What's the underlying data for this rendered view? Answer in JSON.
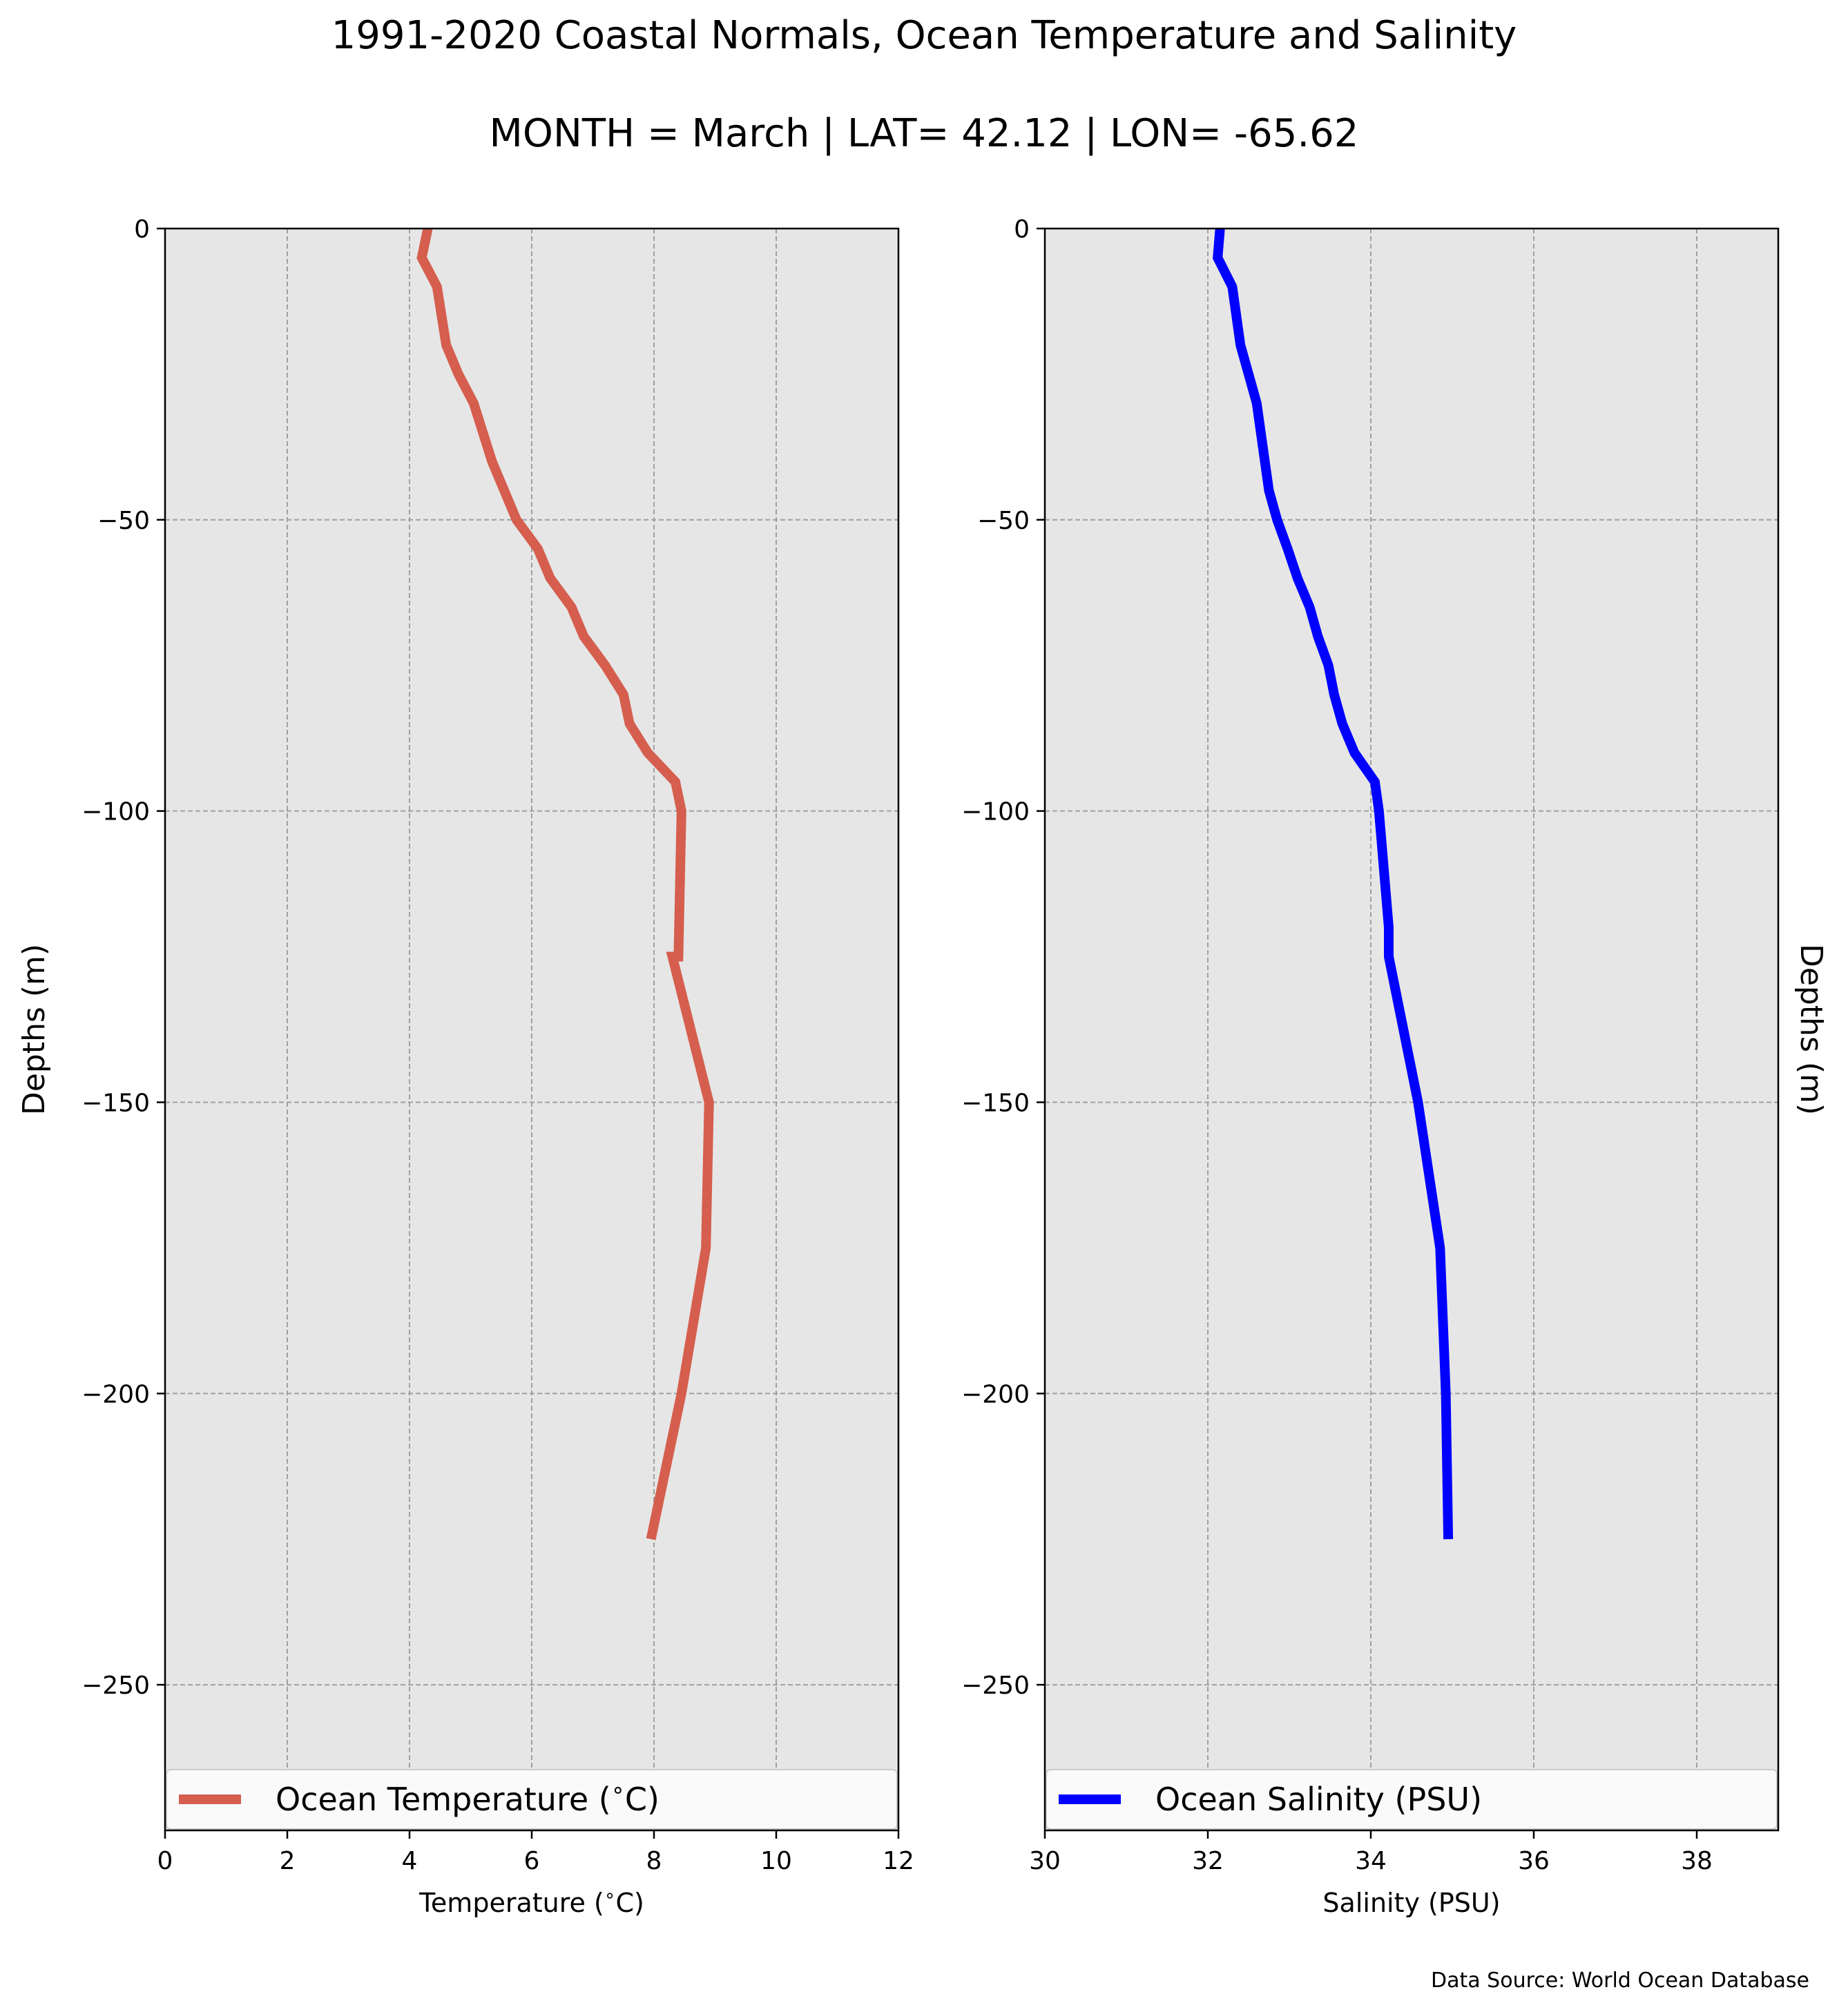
{
  "figure": {
    "title": "1991-2020 Coastal Normals, Ocean Temperature and Salinity",
    "subtitle": "MONTH = March | LAT= 42.12 | LON= -65.62",
    "source": "Data Source: World Ocean Database",
    "background_color": "#e6e6e6",
    "grid_color": "#a0a0a0"
  },
  "chart_data": [
    {
      "type": "line",
      "xlabel": "Temperature ($^\\circ$C)",
      "ylabel": "Depths (m)",
      "xlim": [
        0,
        12
      ],
      "ylim": [
        -275,
        0
      ],
      "xticks": [
        0,
        2,
        4,
        6,
        8,
        10,
        12
      ],
      "yticks": [
        0,
        -50,
        -100,
        -150,
        -200,
        -250
      ],
      "grid": true,
      "legend_position": "bottom",
      "series": [
        {
          "name": "Ocean Temperature ($^\\circ$C)",
          "color": "#d55e4e",
          "x": [
            4.3,
            4.2,
            4.45,
            4.6,
            4.8,
            5.05,
            5.2,
            5.35,
            5.55,
            5.75,
            6.1,
            6.3,
            6.65,
            6.85,
            7.2,
            7.5,
            7.6,
            7.9,
            8.35,
            8.45,
            8.4,
            8.3,
            8.9,
            8.85,
            8.45,
            7.95
          ],
          "y": [
            0,
            -5,
            -10,
            -20,
            -25,
            -30,
            -35,
            -40,
            -45,
            -50,
            -55,
            -60,
            -65,
            -70,
            -75,
            -80,
            -85,
            -90,
            -95,
            -100,
            -125,
            -125,
            -150,
            -175,
            -200,
            -225
          ]
        }
      ]
    },
    {
      "type": "line",
      "xlabel": "Salinity (PSU)",
      "ylabel": "Depths (m)",
      "xlim": [
        30,
        39
      ],
      "ylim": [
        -275,
        0
      ],
      "xticks": [
        30,
        32,
        34,
        36,
        38
      ],
      "yticks": [
        0,
        -50,
        -100,
        -150,
        -200,
        -250
      ],
      "grid": true,
      "legend_position": "bottom",
      "series": [
        {
          "name": "Ocean Salinity (PSU)",
          "color": "#0000ff",
          "x": [
            32.15,
            32.12,
            32.3,
            32.4,
            32.5,
            32.6,
            32.65,
            32.7,
            32.75,
            32.85,
            32.98,
            33.1,
            33.25,
            33.35,
            33.48,
            33.55,
            33.65,
            33.8,
            34.05,
            34.1,
            34.22,
            34.22,
            34.58,
            34.85,
            34.92,
            34.95
          ],
          "y": [
            0,
            -5,
            -10,
            -20,
            -25,
            -30,
            -35,
            -40,
            -45,
            -50,
            -55,
            -60,
            -65,
            -70,
            -75,
            -80,
            -85,
            -90,
            -95,
            -100,
            -120,
            -125,
            -150,
            -175,
            -200,
            -225
          ]
        }
      ]
    }
  ]
}
